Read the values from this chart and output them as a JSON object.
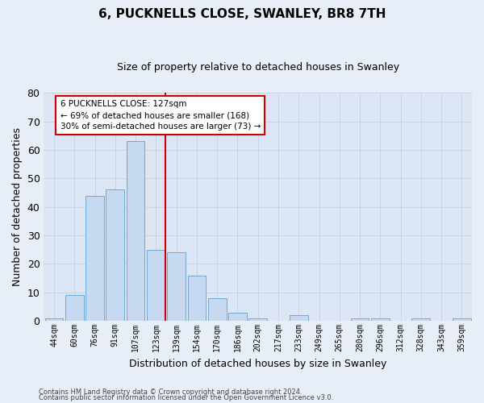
{
  "title1": "6, PUCKNELLS CLOSE, SWANLEY, BR8 7TH",
  "title2": "Size of property relative to detached houses in Swanley",
  "xlabel": "Distribution of detached houses by size in Swanley",
  "ylabel": "Number of detached properties",
  "categories": [
    "44sqm",
    "60sqm",
    "76sqm",
    "91sqm",
    "107sqm",
    "123sqm",
    "139sqm",
    "154sqm",
    "170sqm",
    "186sqm",
    "202sqm",
    "217sqm",
    "233sqm",
    "249sqm",
    "265sqm",
    "280sqm",
    "296sqm",
    "312sqm",
    "328sqm",
    "343sqm",
    "359sqm"
  ],
  "values": [
    1,
    9,
    44,
    46,
    63,
    25,
    24,
    16,
    8,
    3,
    1,
    0,
    2,
    0,
    0,
    1,
    1,
    0,
    1,
    0,
    1
  ],
  "bar_color": "#c6d9f0",
  "bar_edge_color": "#6fa8d6",
  "vline_color": "#cc0000",
  "annotation_line1": "6 PUCKNELLS CLOSE: 127sqm",
  "annotation_line2": "← 69% of detached houses are smaller (168)",
  "annotation_line3": "30% of semi-detached houses are larger (73) →",
  "annotation_box_color": "#cc0000",
  "ylim": [
    0,
    80
  ],
  "yticks": [
    0,
    10,
    20,
    30,
    40,
    50,
    60,
    70,
    80
  ],
  "grid_color": "#c8d0e0",
  "plot_bg_color": "#dce6f5",
  "fig_bg_color": "#e8eef8",
  "footer1": "Contains HM Land Registry data © Crown copyright and database right 2024.",
  "footer2": "Contains public sector information licensed under the Open Government Licence v3.0.",
  "title1_fontsize": 11,
  "title2_fontsize": 9,
  "ylabel_fontsize": 9,
  "xlabel_fontsize": 9,
  "tick_fontsize": 7,
  "footer_fontsize": 6,
  "vline_bar_index": 5
}
